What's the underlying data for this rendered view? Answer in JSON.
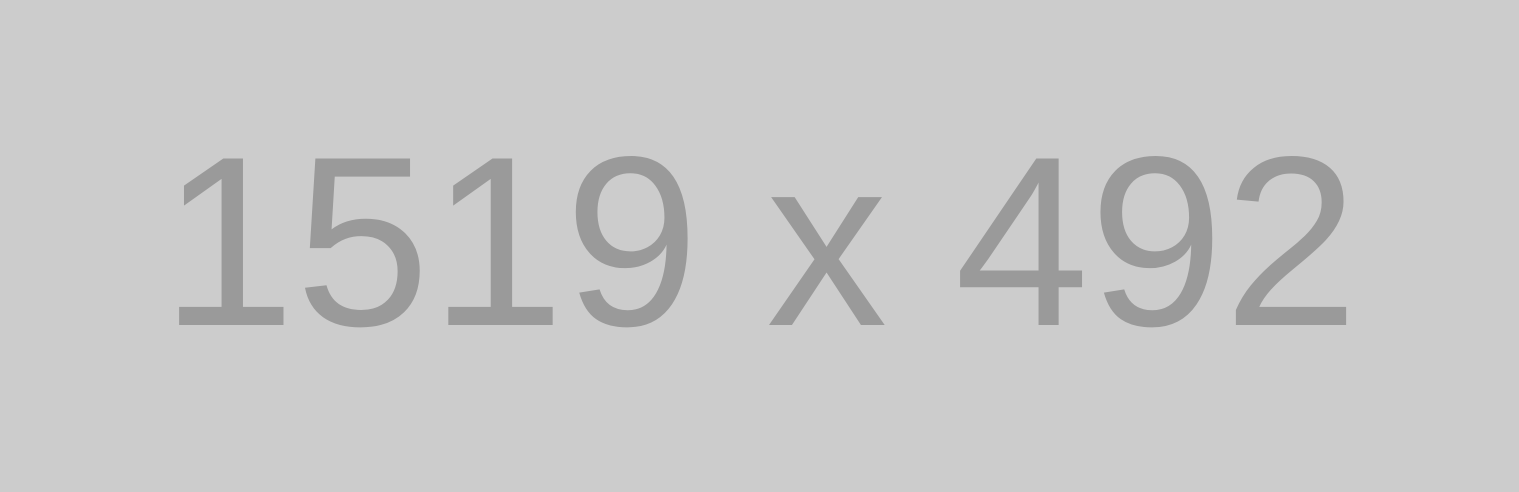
{
  "placeholder": {
    "text": "1519 x 492",
    "background_color": "#cccccc",
    "text_color": "#9a9a9a"
  }
}
